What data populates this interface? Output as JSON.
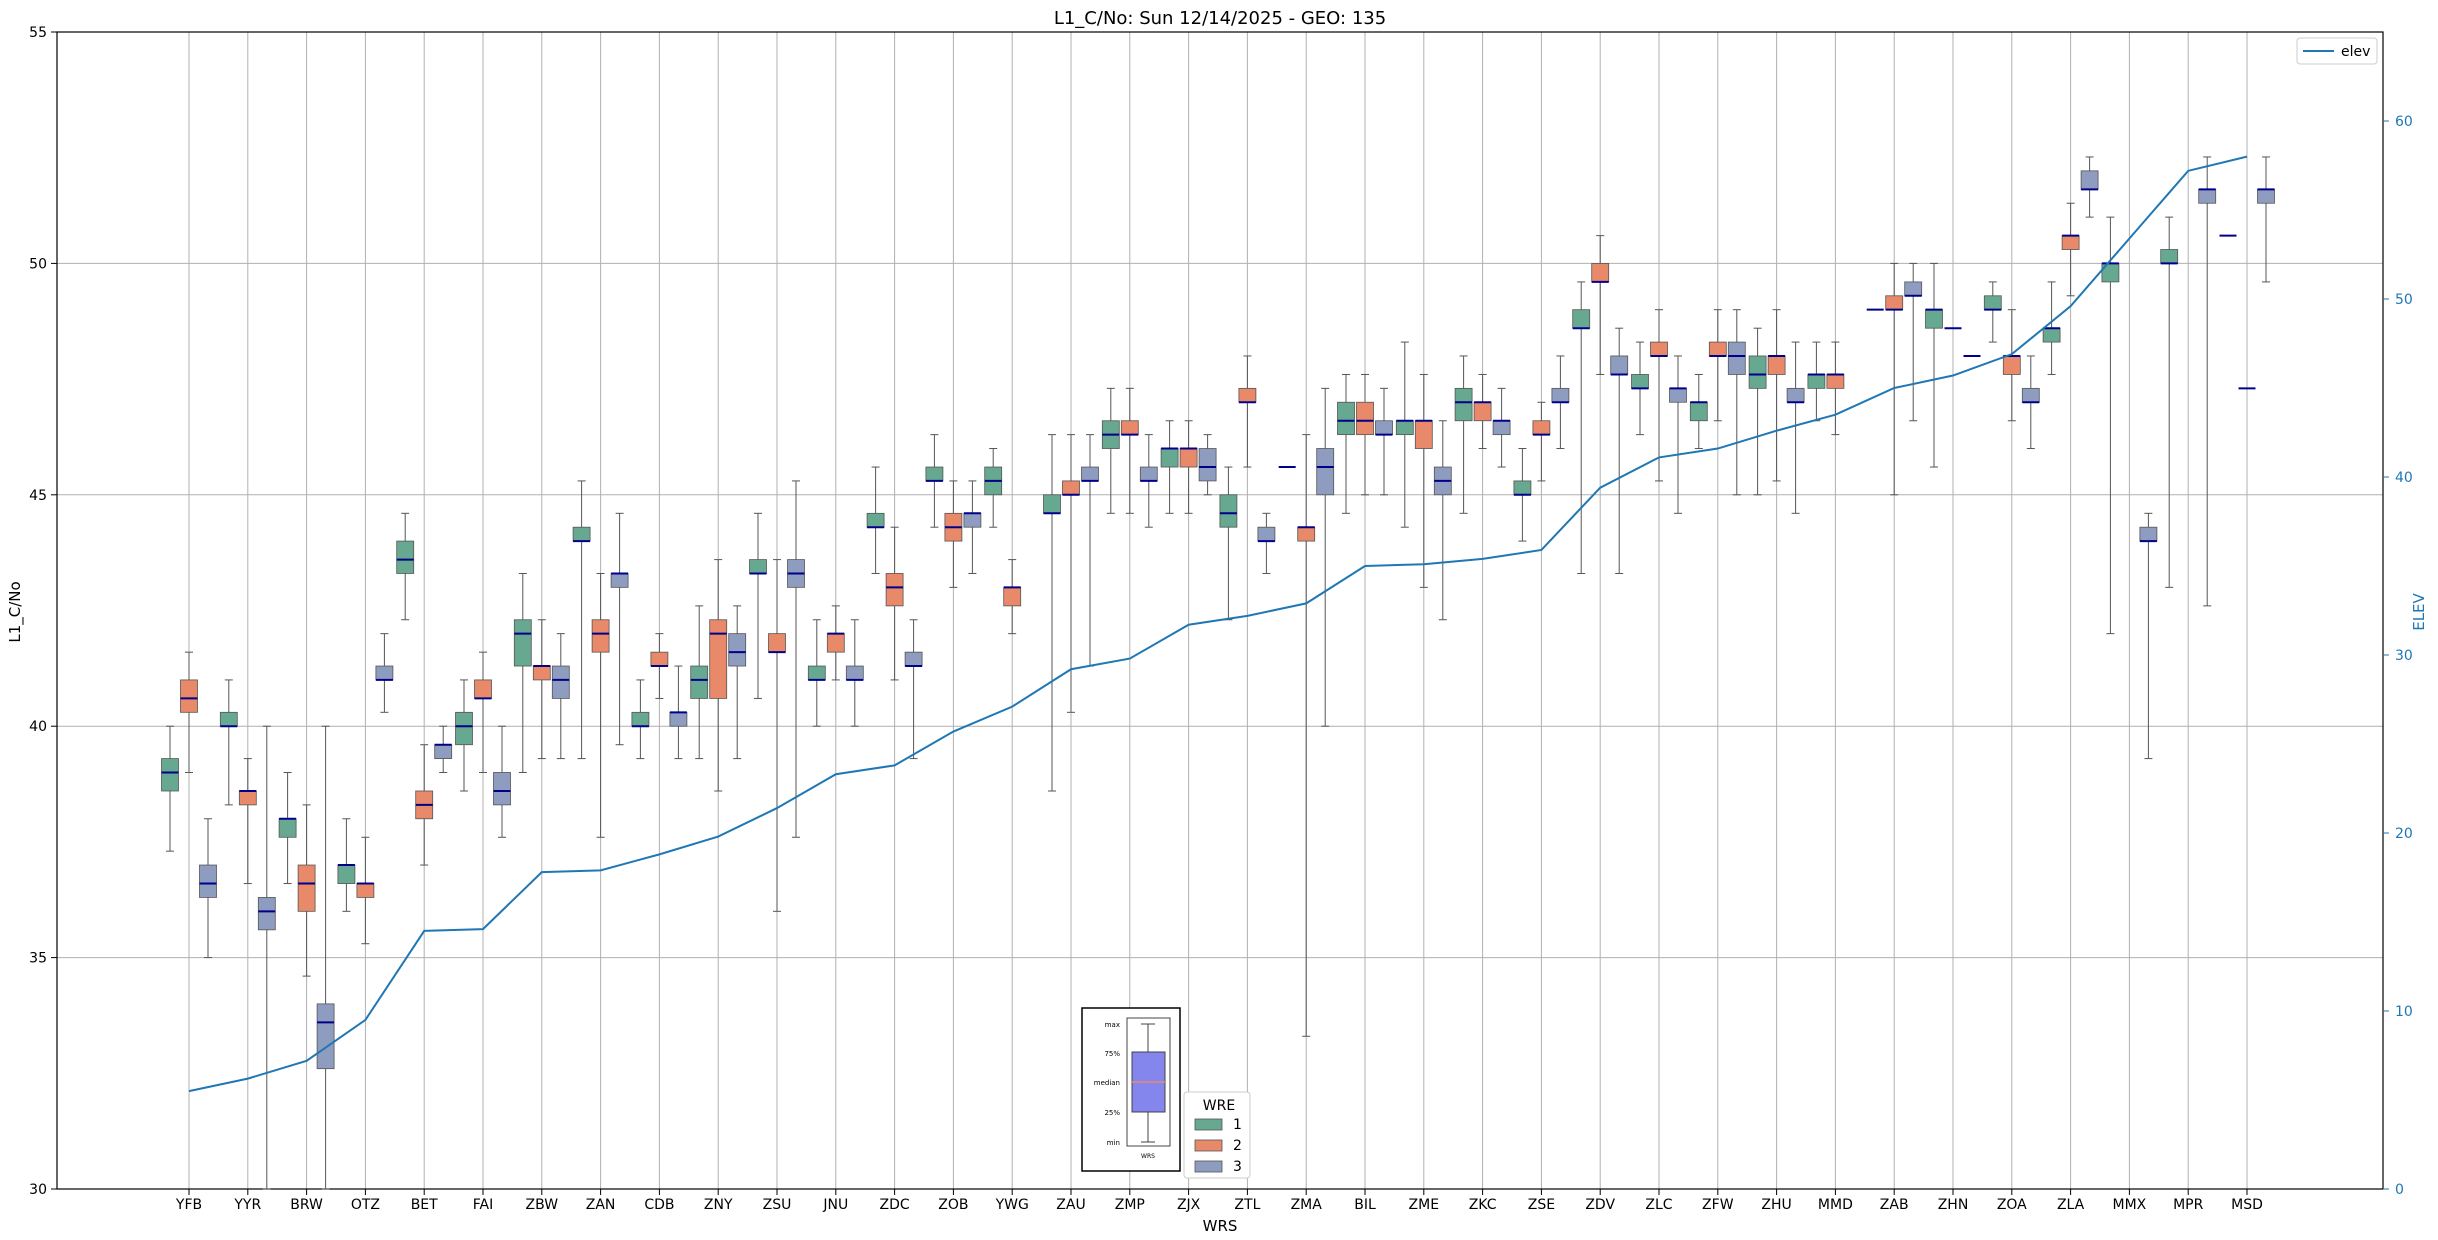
{
  "chart_data": {
    "type": "box",
    "title": "L1_C/No: Sun 12/14/2025 - GEO: 135",
    "xlabel": "WRS",
    "ylabel": "L1_C/No",
    "ylabel2": "ELEV",
    "ylim": [
      30,
      55
    ],
    "y2lim": [
      0,
      65
    ],
    "yticks": [
      30,
      35,
      40,
      45,
      50,
      55
    ],
    "y2ticks": [
      0,
      10,
      20,
      30,
      40,
      50,
      60
    ],
    "grid": true,
    "categories": [
      "YFB",
      "YYR",
      "BRW",
      "OTZ",
      "BET",
      "FAI",
      "ZBW",
      "ZAN",
      "CDB",
      "ZNY",
      "ZSU",
      "JNU",
      "ZDC",
      "ZOB",
      "YWG",
      "ZAU",
      "ZMP",
      "ZJX",
      "ZTL",
      "ZMA",
      "BIL",
      "ZME",
      "ZKC",
      "ZSE",
      "ZDV",
      "ZLC",
      "ZFW",
      "ZHU",
      "MMD",
      "ZAB",
      "ZHN",
      "ZOA",
      "ZLA",
      "MMX",
      "MPR",
      "MSD"
    ],
    "series": [
      {
        "name": "1",
        "color": "#66a890",
        "boxes": [
          [
            37.3,
            38.6,
            39.0,
            39.3,
            40.0
          ],
          [
            38.3,
            40.0,
            40.0,
            40.3,
            41.0
          ],
          [
            36.6,
            37.6,
            38.0,
            38.0,
            39.0
          ],
          [
            36.0,
            36.6,
            37.0,
            37.0,
            38.0
          ],
          [
            42.3,
            43.3,
            43.6,
            44.0,
            44.6
          ],
          [
            38.6,
            39.6,
            40.0,
            40.3,
            41.0
          ],
          [
            39.0,
            41.3,
            42.0,
            42.3,
            43.3
          ],
          [
            39.3,
            44.0,
            44.0,
            44.3,
            45.3
          ],
          [
            39.3,
            40.0,
            40.0,
            40.3,
            41.0
          ],
          [
            39.3,
            40.6,
            41.0,
            41.3,
            42.6
          ],
          [
            40.6,
            43.3,
            43.3,
            43.6,
            44.6
          ],
          [
            40.0,
            41.0,
            41.0,
            41.3,
            42.3
          ],
          [
            43.3,
            44.3,
            44.3,
            44.6,
            45.6
          ],
          [
            44.3,
            45.3,
            45.3,
            45.6,
            46.3
          ],
          [
            44.3,
            45.0,
            45.3,
            45.6,
            46.0
          ],
          [
            38.6,
            44.6,
            44.6,
            45.0,
            46.3
          ],
          [
            44.6,
            46.0,
            46.3,
            46.6,
            47.3
          ],
          [
            44.6,
            45.6,
            46.0,
            46.0,
            46.6
          ],
          [
            42.3,
            44.3,
            44.6,
            45.0,
            45.6
          ],
          [
            null,
            null,
            null,
            null,
            null
          ],
          [
            44.6,
            46.3,
            46.6,
            47.0,
            47.6
          ],
          [
            44.3,
            46.3,
            46.6,
            46.6,
            48.3
          ],
          [
            44.6,
            46.6,
            47.0,
            47.3,
            48.0
          ],
          [
            44.0,
            45.0,
            45.0,
            45.3,
            46.0
          ],
          [
            43.3,
            48.6,
            48.6,
            49.0,
            49.6
          ],
          [
            46.3,
            47.3,
            47.3,
            47.6,
            48.3
          ],
          [
            46.0,
            46.6,
            47.0,
            47.0,
            47.6
          ],
          [
            45.0,
            47.3,
            47.6,
            48.0,
            48.6
          ],
          [
            46.6,
            47.3,
            47.6,
            47.6,
            48.3
          ],
          [
            null,
            null,
            null,
            null,
            null
          ],
          [
            45.6,
            48.6,
            49.0,
            49.0,
            50.0
          ],
          [
            48.3,
            49.0,
            49.0,
            49.3,
            49.6
          ],
          [
            47.6,
            48.3,
            48.6,
            48.6,
            49.6
          ],
          [
            42.0,
            49.6,
            50.0,
            50.0,
            51.0
          ],
          [
            43.0,
            50.0,
            50.0,
            50.3,
            51.0
          ],
          [
            null,
            null,
            null,
            null,
            null
          ]
        ]
      },
      {
        "name": "2",
        "color": "#e8896a",
        "boxes": [
          [
            39.0,
            40.3,
            40.6,
            41.0,
            41.6
          ],
          [
            36.6,
            38.3,
            38.6,
            38.6,
            39.3
          ],
          [
            34.6,
            36.0,
            36.6,
            37.0,
            38.3
          ],
          [
            35.3,
            36.3,
            36.6,
            36.6,
            37.6
          ],
          [
            37.0,
            38.0,
            38.3,
            38.6,
            39.6
          ],
          [
            39.0,
            40.6,
            40.6,
            41.0,
            41.6
          ],
          [
            39.3,
            41.0,
            41.3,
            41.3,
            42.3
          ],
          [
            37.6,
            41.6,
            42.0,
            42.3,
            43.3
          ],
          [
            40.6,
            41.3,
            41.3,
            41.6,
            42.0
          ],
          [
            38.6,
            40.6,
            42.0,
            42.3,
            43.6
          ],
          [
            36.0,
            41.6,
            41.6,
            42.0,
            43.6
          ],
          [
            41.0,
            41.6,
            42.0,
            42.0,
            42.6
          ],
          [
            41.0,
            42.6,
            43.0,
            43.3,
            44.3
          ],
          [
            43.0,
            44.0,
            44.3,
            44.6,
            45.3
          ],
          [
            42.0,
            42.6,
            43.0,
            43.0,
            43.6
          ],
          [
            40.3,
            45.0,
            45.0,
            45.3,
            46.3
          ],
          [
            44.6,
            46.3,
            46.3,
            46.6,
            47.3
          ],
          [
            44.6,
            45.6,
            46.0,
            46.0,
            46.6
          ],
          [
            45.6,
            47.0,
            47.0,
            47.3,
            48.0
          ],
          [
            33.3,
            44.0,
            44.3,
            44.3,
            46.3
          ],
          [
            45.0,
            46.3,
            46.6,
            47.0,
            47.6
          ],
          [
            43.0,
            46.0,
            46.6,
            46.6,
            47.6
          ],
          [
            46.0,
            46.6,
            47.0,
            47.0,
            47.6
          ],
          [
            45.3,
            46.3,
            46.3,
            46.6,
            47.0
          ],
          [
            47.6,
            49.6,
            49.6,
            50.0,
            50.6
          ],
          [
            45.3,
            48.0,
            48.0,
            48.3,
            49.0
          ],
          [
            46.6,
            48.0,
            48.0,
            48.3,
            49.0
          ],
          [
            45.3,
            47.6,
            48.0,
            48.0,
            49.0
          ],
          [
            46.3,
            47.3,
            47.6,
            47.6,
            48.3
          ],
          [
            45.0,
            49.0,
            49.0,
            49.3,
            50.0
          ],
          [
            null,
            null,
            null,
            null,
            null
          ],
          [
            46.6,
            47.6,
            48.0,
            48.0,
            49.0
          ],
          [
            49.3,
            50.3,
            50.6,
            50.6,
            51.3
          ],
          [
            null,
            null,
            null,
            null,
            null
          ],
          [
            null,
            null,
            null,
            null,
            null
          ],
          [
            null,
            null,
            null,
            null,
            null
          ]
        ]
      },
      {
        "name": "3",
        "color": "#8e9cbf",
        "boxes": [
          [
            35.0,
            36.3,
            36.6,
            37.0,
            38.0
          ],
          [
            30.0,
            35.6,
            36.0,
            36.3,
            40.0
          ],
          [
            30.0,
            32.6,
            33.6,
            34.0,
            40.0
          ],
          [
            40.3,
            41.0,
            41.0,
            41.3,
            42.0
          ],
          [
            39.0,
            39.3,
            39.6,
            39.6,
            40.0
          ],
          [
            37.6,
            38.3,
            38.6,
            39.0,
            40.0
          ],
          [
            39.3,
            40.6,
            41.0,
            41.3,
            42.0
          ],
          [
            39.6,
            43.0,
            43.3,
            43.3,
            44.6
          ],
          [
            39.3,
            40.0,
            40.3,
            40.3,
            41.3
          ],
          [
            39.3,
            41.3,
            41.6,
            42.0,
            42.6
          ],
          [
            37.6,
            43.0,
            43.3,
            43.6,
            45.3
          ],
          [
            40.0,
            41.0,
            41.0,
            41.3,
            42.3
          ],
          [
            39.3,
            41.3,
            41.3,
            41.6,
            42.3
          ],
          [
            43.3,
            44.3,
            44.6,
            44.6,
            45.3
          ],
          [
            null,
            null,
            null,
            null,
            null
          ],
          [
            41.3,
            45.3,
            45.3,
            45.6,
            46.3
          ],
          [
            44.3,
            45.3,
            45.3,
            45.6,
            46.3
          ],
          [
            45.0,
            45.3,
            45.6,
            46.0,
            46.3
          ],
          [
            43.3,
            44.0,
            44.0,
            44.3,
            44.6
          ],
          [
            40.0,
            45.0,
            45.6,
            46.0,
            47.3
          ],
          [
            45.0,
            46.3,
            46.3,
            46.6,
            47.3
          ],
          [
            42.3,
            45.0,
            45.3,
            45.6,
            46.6
          ],
          [
            45.6,
            46.3,
            46.6,
            46.6,
            47.3
          ],
          [
            46.0,
            47.0,
            47.0,
            47.3,
            48.0
          ],
          [
            43.3,
            47.6,
            47.6,
            48.0,
            48.6
          ],
          [
            44.6,
            47.0,
            47.3,
            47.3,
            48.0
          ],
          [
            45.0,
            47.6,
            48.0,
            48.3,
            49.0
          ],
          [
            44.6,
            47.0,
            47.0,
            47.3,
            48.3
          ],
          [
            null,
            null,
            null,
            null,
            null
          ],
          [
            46.6,
            49.3,
            49.3,
            49.6,
            50.0
          ],
          [
            null,
            null,
            null,
            null,
            null
          ],
          [
            46.0,
            47.0,
            47.0,
            47.3,
            48.0
          ],
          [
            51.0,
            51.6,
            51.6,
            52.0,
            52.3
          ],
          [
            39.3,
            44.0,
            44.0,
            44.3,
            44.6
          ],
          [
            42.6,
            51.3,
            51.6,
            51.6,
            52.3
          ],
          [
            49.6,
            51.3,
            51.6,
            51.6,
            52.3
          ]
        ]
      }
    ],
    "median_only": [
      {
        "category": "ZMA",
        "series": "1",
        "value": 45.6
      },
      {
        "category": "ZAB",
        "series": "1",
        "value": 49.0
      },
      {
        "category": "ZHN",
        "series": "2",
        "value": 48.6
      },
      {
        "category": "YWG",
        "series": "3",
        "value": null
      },
      {
        "category": "MSD",
        "series": "1",
        "value": 50.6
      },
      {
        "category": "MSD",
        "series": "2",
        "value": 47.3
      },
      {
        "category": "ZHN",
        "series": "3",
        "value": 48.0
      }
    ],
    "elev": {
      "name": "elev",
      "color": "#1f77b4",
      "values": [
        5.5,
        6.2,
        7.2,
        9.5,
        14.5,
        14.6,
        17.8,
        17.9,
        18.8,
        19.8,
        21.4,
        23.3,
        23.8,
        25.7,
        27.1,
        29.2,
        29.8,
        31.7,
        32.2,
        32.9,
        35.0,
        35.1,
        35.4,
        35.9,
        39.4,
        41.1,
        41.6,
        42.6,
        43.5,
        45.0,
        45.7,
        46.9,
        49.6,
        53.4,
        57.2,
        58.0
      ]
    },
    "legend_elev_label": "elev",
    "legend_wre_title": "WRE",
    "legend_wre_entries": [
      "1",
      "2",
      "3"
    ],
    "key_labels": [
      "max",
      "75%",
      "median",
      "25%",
      "min"
    ],
    "key_xlabel": "WRS",
    "legend_placement_elev": "top-right",
    "legend_placement_wre": "bottom-center"
  }
}
